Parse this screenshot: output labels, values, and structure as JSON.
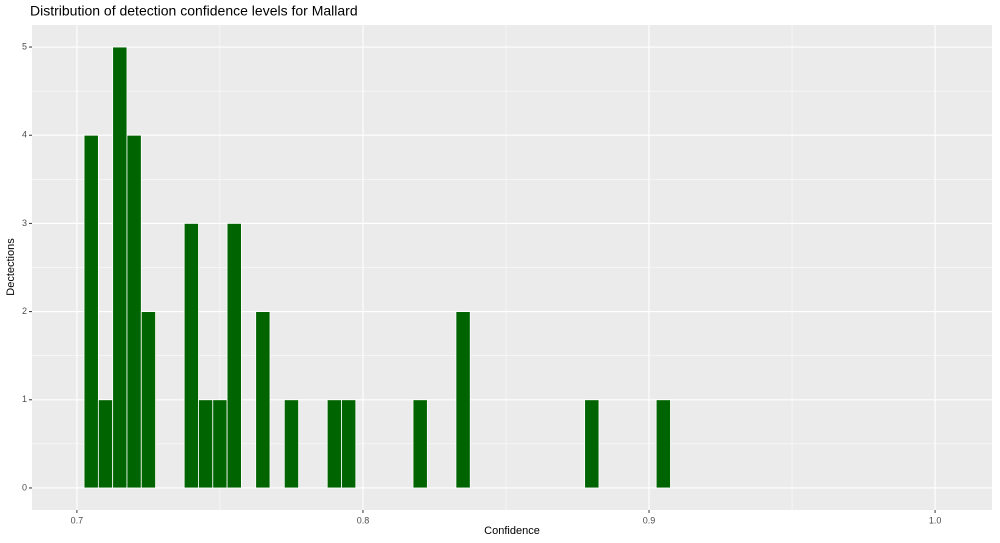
{
  "chart_data": {
    "type": "histogram",
    "title": "Distribution of detection confidence levels for Mallard",
    "x_label": "Confidence",
    "y_label": "Dectections",
    "bins": [
      0.7025,
      0.7075,
      0.7125,
      0.7175,
      0.7225,
      0.7275,
      0.7325,
      0.7375,
      0.7425,
      0.7475,
      0.7525,
      0.7575,
      0.7625,
      0.7675,
      0.7725,
      0.7775,
      0.7825,
      0.7875,
      0.7925,
      0.7975,
      0.8025,
      0.8075,
      0.8125,
      0.8175,
      0.8225,
      0.8275,
      0.8325,
      0.8375,
      0.8425,
      0.8475,
      0.8525,
      0.8575,
      0.8625,
      0.8675,
      0.8725,
      0.8775,
      0.8825,
      0.8875,
      0.8925,
      0.8975,
      0.9025,
      0.9075
    ],
    "counts": [
      4,
      1,
      5,
      4,
      2,
      0,
      0,
      3,
      1,
      1,
      3,
      0,
      2,
      0,
      1,
      0,
      0,
      1,
      1,
      0,
      0,
      0,
      0,
      1,
      0,
      0,
      2,
      0,
      0,
      0,
      0,
      0,
      0,
      0,
      0,
      1,
      0,
      0,
      0,
      0,
      1
    ],
    "color": "#006400",
    "xlim": [
      0.6843,
      1.0199
    ],
    "xticks": [
      0.7,
      0.8,
      0.9,
      {
        "value": 1,
        "label": "1.0"
      }
    ],
    "ylim": [
      -0.25,
      5.25
    ],
    "yticks": [
      0,
      1,
      2,
      3,
      4,
      5
    ],
    "grid": true
  }
}
